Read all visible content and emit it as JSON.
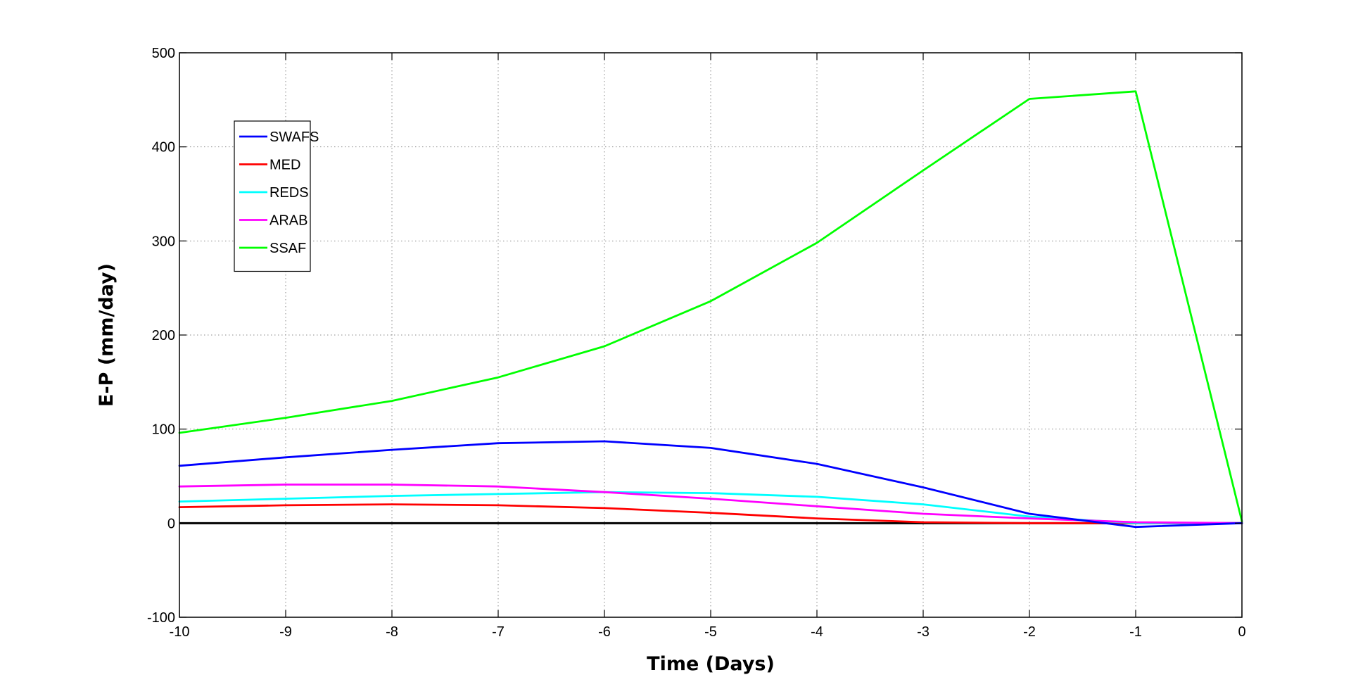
{
  "chart_data": {
    "type": "line",
    "title": "",
    "xlabel": "Time (Days)",
    "ylabel": "E-P (mm/day)",
    "xlim": [
      -10,
      0
    ],
    "ylim": [
      -100,
      500
    ],
    "xticks": [
      -10,
      -9,
      -8,
      -7,
      -6,
      -5,
      -4,
      -3,
      -2,
      -1,
      0
    ],
    "yticks": [
      -100,
      0,
      100,
      200,
      300,
      400,
      500
    ],
    "grid": true,
    "grid_style": "dotted",
    "legend_position": "upper-left",
    "zero_line": {
      "y": 0,
      "color": "#000000"
    },
    "x": [
      -10,
      -9,
      -8,
      -7,
      -6,
      -5,
      -4,
      -3,
      -2,
      -1,
      0
    ],
    "series": [
      {
        "name": "SWAFS",
        "color": "#0000FF",
        "values": [
          61,
          70,
          78,
          85,
          87,
          80,
          63,
          38,
          10,
          -4,
          0
        ]
      },
      {
        "name": "MED",
        "color": "#FF0000",
        "values": [
          17,
          19,
          20,
          19,
          16,
          11,
          5,
          1,
          0,
          0,
          0
        ]
      },
      {
        "name": "REDS",
        "color": "#00FFFF",
        "values": [
          23,
          26,
          29,
          31,
          33,
          32,
          28,
          20,
          7,
          0,
          0
        ]
      },
      {
        "name": "ARAB",
        "color": "#FF00FF",
        "values": [
          39,
          41,
          41,
          39,
          33,
          26,
          18,
          10,
          5,
          1,
          0
        ]
      },
      {
        "name": "SSAF",
        "color": "#00FF00",
        "values": [
          96,
          112,
          130,
          155,
          188,
          236,
          298,
          375,
          451,
          459,
          2
        ]
      }
    ]
  }
}
